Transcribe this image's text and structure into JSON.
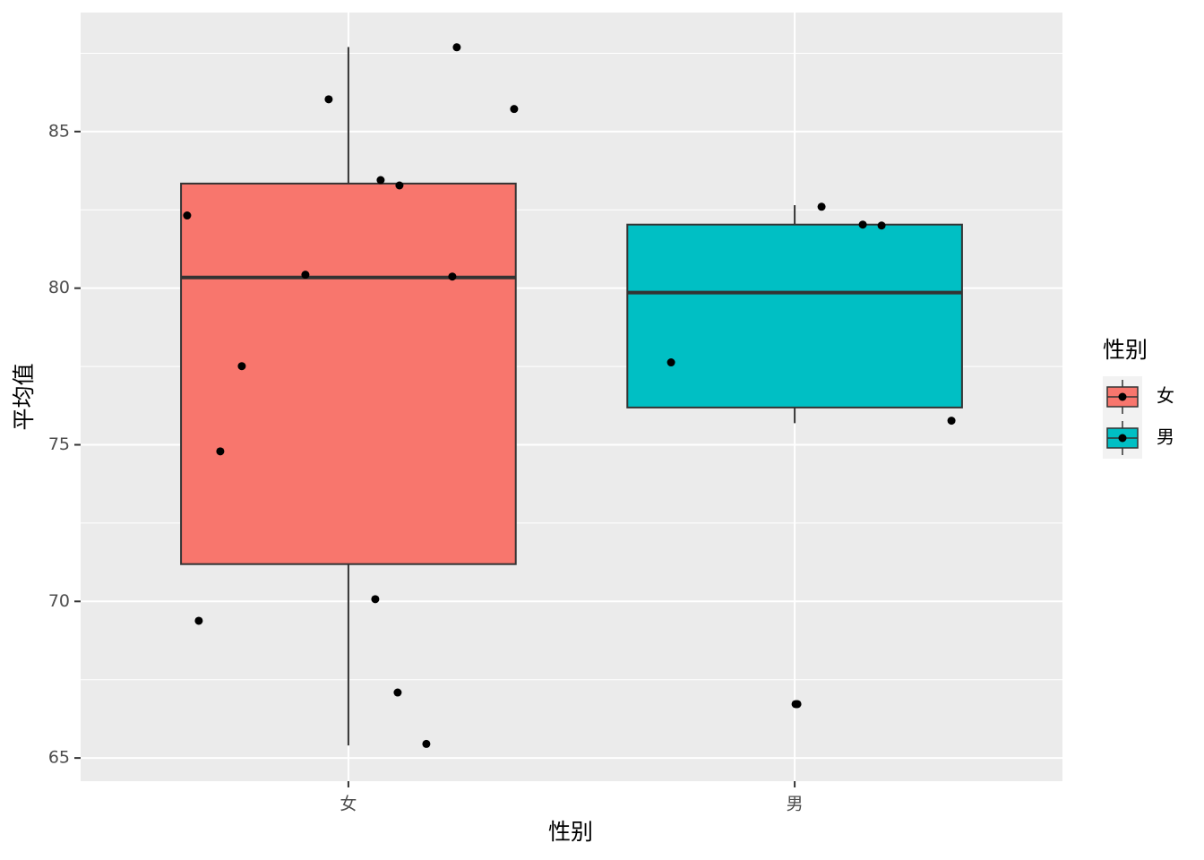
{
  "chart_data": {
    "type": "boxplot",
    "x_label": "性别",
    "y_label": "平均值",
    "categories": [
      "女",
      "男"
    ],
    "ylim": [
      64.26,
      88.8
    ],
    "yticks": [
      65,
      70,
      75,
      80,
      85
    ],
    "grid": true,
    "legend": {
      "title": "性别",
      "position": "right"
    },
    "series": [
      {
        "name": "女",
        "color": "#F8766D",
        "whisker_low": 65.4,
        "q1": 71.19,
        "median": 80.34,
        "q3": 83.34,
        "whisker_high": 87.7,
        "points": [
          87.69,
          86.03,
          85.72,
          83.45,
          83.28,
          82.32,
          80.43,
          80.37,
          77.51,
          74.79,
          70.07,
          69.38,
          67.09,
          65.45
        ]
      },
      {
        "name": "男",
        "color": "#00BFC4",
        "whisker_low": 75.69,
        "q1": 76.19,
        "median": 79.86,
        "q3": 82.03,
        "whisker_high": 82.65,
        "points": [
          82.6,
          82.03,
          82.0,
          77.63,
          75.77,
          66.72,
          66.72
        ]
      }
    ]
  }
}
